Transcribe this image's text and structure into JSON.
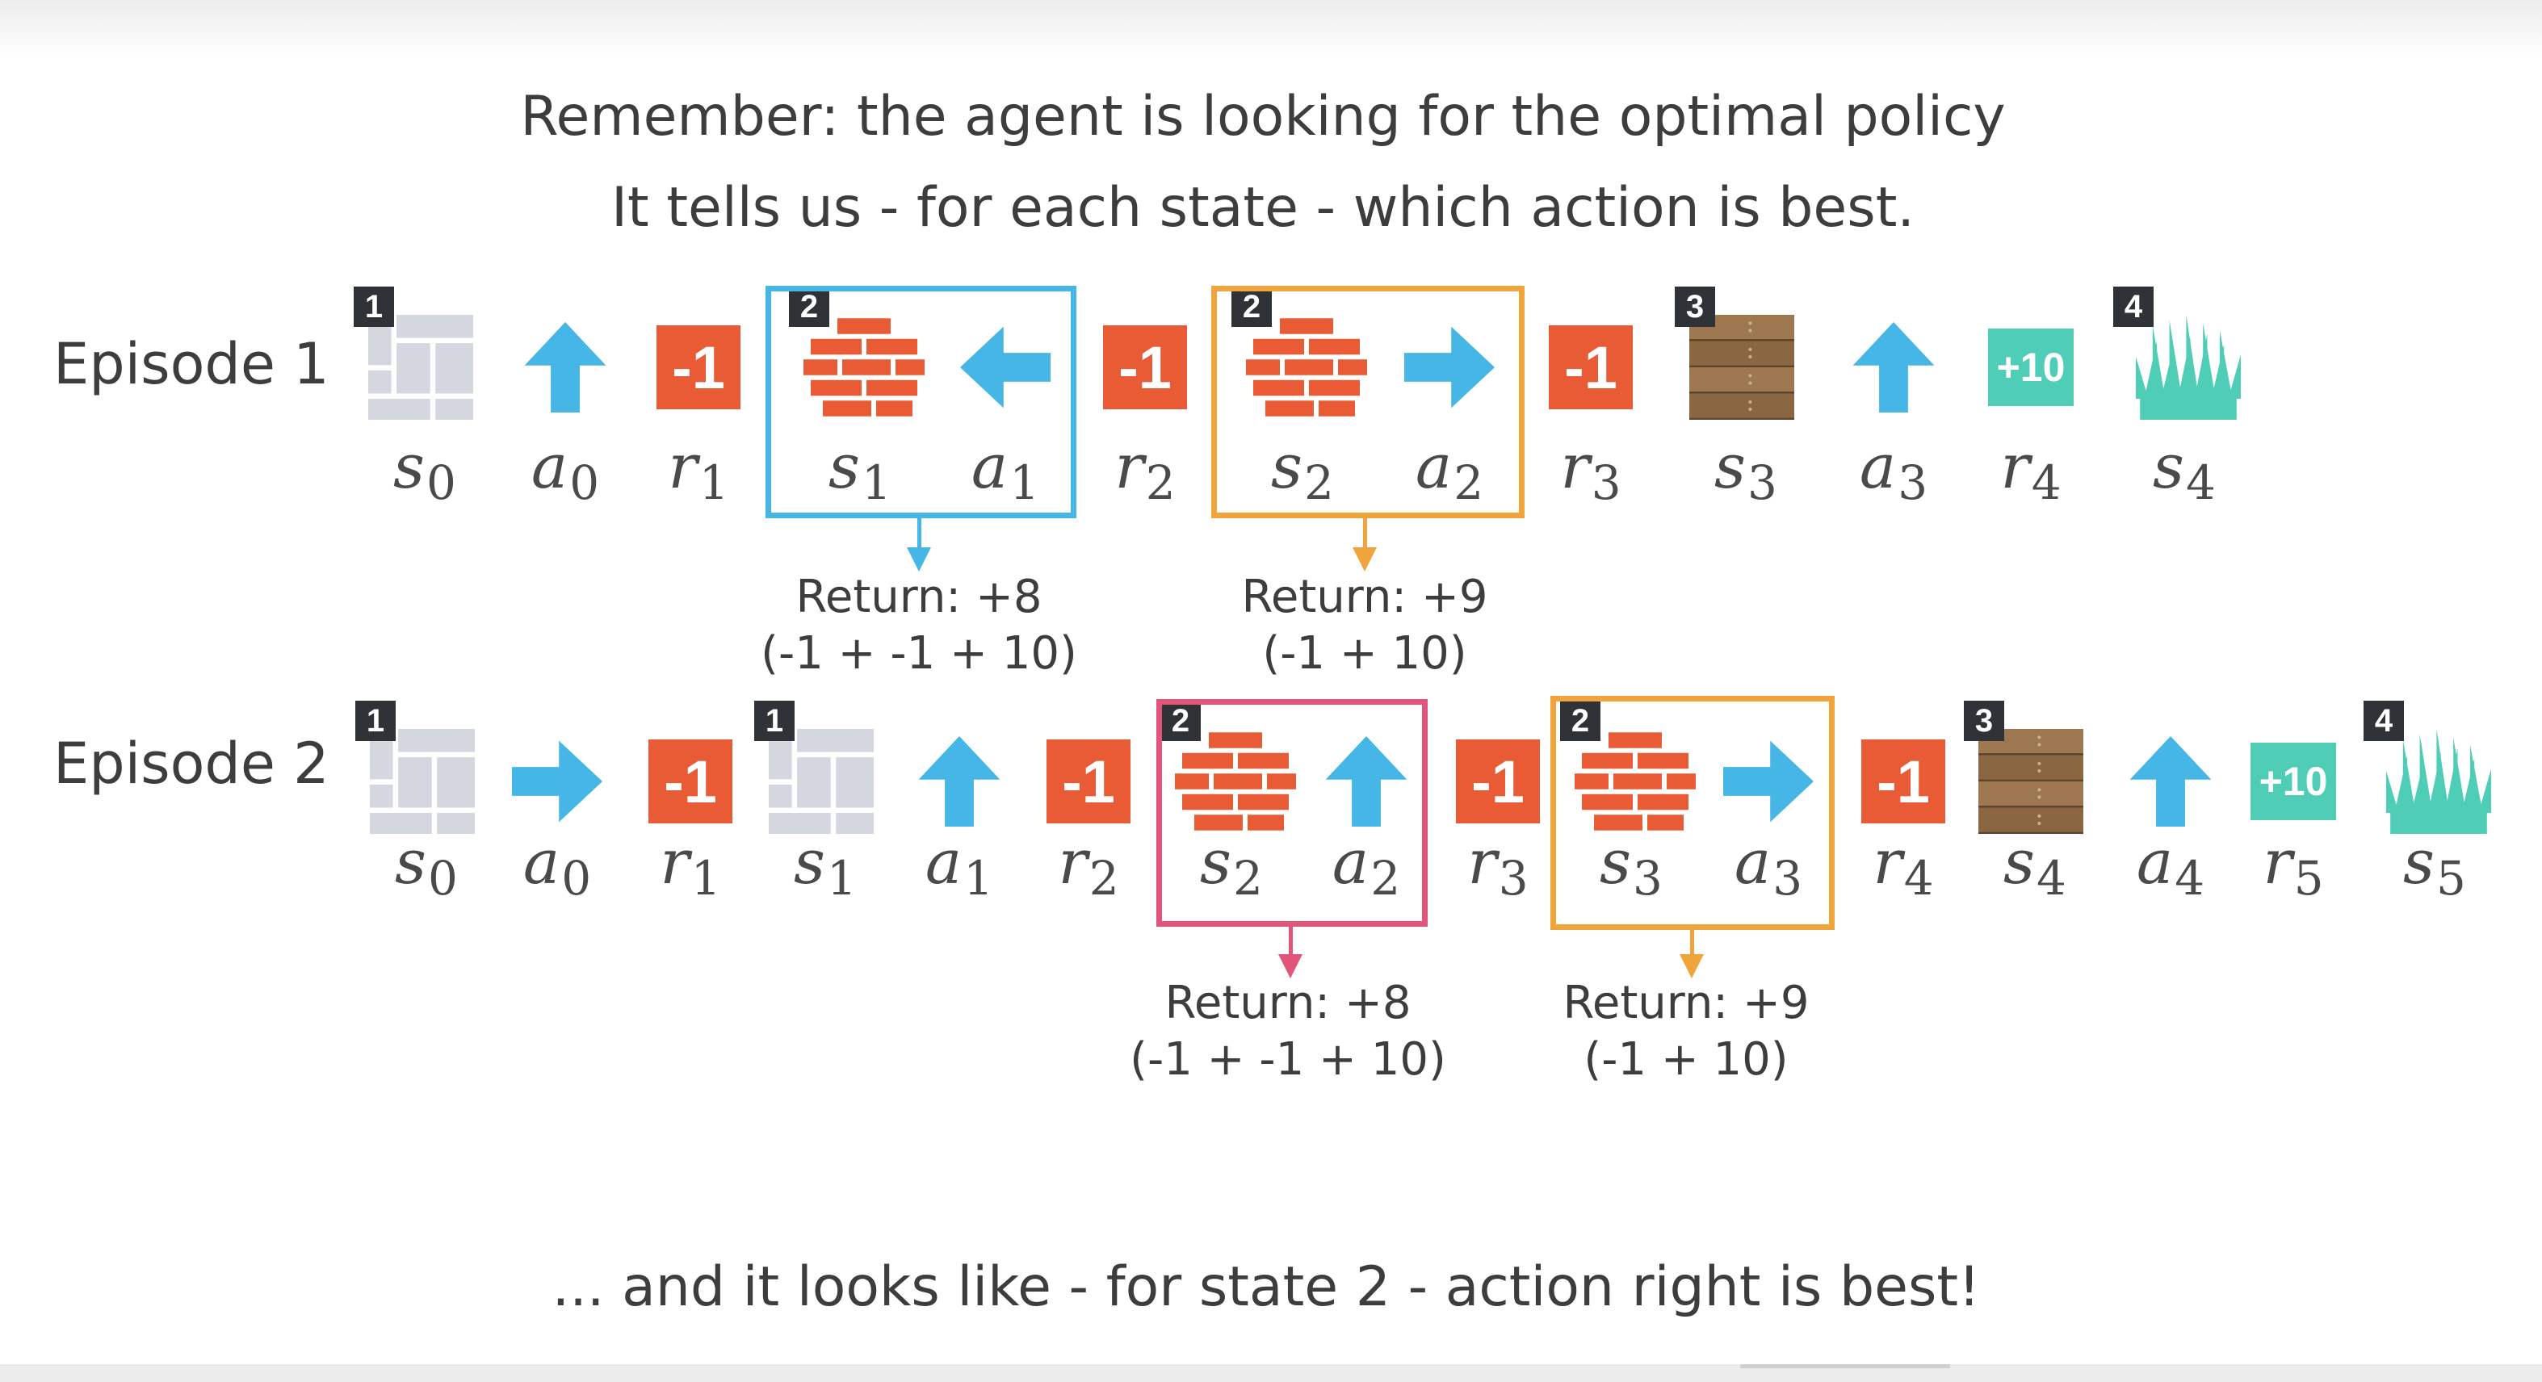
{
  "heading": {
    "line1": "Remember: the agent is looking for the optimal policy",
    "line2": "It tells us - for each state - which action is best."
  },
  "footer": "... and it looks like - for state 2 - action right is best!",
  "colors": {
    "action_arrow": "#45b6e6",
    "reward": "#e85b34",
    "reward_goal": "#4fcdb6",
    "box_blue": "#45b6e6",
    "box_orange": "#f0a43c",
    "box_pink": "#e2557a"
  },
  "episodes": [
    {
      "label": "Episode 1",
      "steps": [
        {
          "kind": "state",
          "icon": "tile-icon",
          "badge": "1",
          "var": "s",
          "sub": "0"
        },
        {
          "kind": "action",
          "icon": "arrow-up-icon",
          "var": "a",
          "sub": "0"
        },
        {
          "kind": "reward",
          "value": "-1",
          "var": "r",
          "sub": "1"
        },
        {
          "kind": "state",
          "icon": "brick-icon",
          "badge": "2",
          "var": "s",
          "sub": "1"
        },
        {
          "kind": "action",
          "icon": "arrow-left-icon",
          "var": "a",
          "sub": "1"
        },
        {
          "kind": "reward",
          "value": "-1",
          "var": "r",
          "sub": "2"
        },
        {
          "kind": "state",
          "icon": "brick-icon",
          "badge": "2",
          "var": "s",
          "sub": "2"
        },
        {
          "kind": "action",
          "icon": "arrow-right-icon",
          "var": "a",
          "sub": "2"
        },
        {
          "kind": "reward",
          "value": "-1",
          "var": "r",
          "sub": "3"
        },
        {
          "kind": "state",
          "icon": "wood-icon",
          "badge": "3",
          "var": "s",
          "sub": "3"
        },
        {
          "kind": "action",
          "icon": "arrow-up-icon",
          "var": "a",
          "sub": "3"
        },
        {
          "kind": "reward",
          "value": "+10",
          "var": "r",
          "sub": "4"
        },
        {
          "kind": "state",
          "icon": "grass-icon",
          "badge": "4",
          "var": "s",
          "sub": "4"
        }
      ],
      "returns": [
        {
          "label": "Return: +8",
          "calc": "(-1 + -1 + 10)",
          "box_color": "blue"
        },
        {
          "label": "Return: +9",
          "calc": "(-1 + 10)",
          "box_color": "orange"
        }
      ]
    },
    {
      "label": "Episode 2",
      "steps": [
        {
          "kind": "state",
          "icon": "tile-icon",
          "badge": "1",
          "var": "s",
          "sub": "0"
        },
        {
          "kind": "action",
          "icon": "arrow-right-icon",
          "var": "a",
          "sub": "0"
        },
        {
          "kind": "reward",
          "value": "-1",
          "var": "r",
          "sub": "1"
        },
        {
          "kind": "state",
          "icon": "tile-icon",
          "badge": "1",
          "var": "s",
          "sub": "1"
        },
        {
          "kind": "action",
          "icon": "arrow-up-icon",
          "var": "a",
          "sub": "1"
        },
        {
          "kind": "reward",
          "value": "-1",
          "var": "r",
          "sub": "2"
        },
        {
          "kind": "state",
          "icon": "brick-icon",
          "badge": "2",
          "var": "s",
          "sub": "2"
        },
        {
          "kind": "action",
          "icon": "arrow-up-icon",
          "var": "a",
          "sub": "2"
        },
        {
          "kind": "reward",
          "value": "-1",
          "var": "r",
          "sub": "3"
        },
        {
          "kind": "state",
          "icon": "brick-icon",
          "badge": "2",
          "var": "s",
          "sub": "3"
        },
        {
          "kind": "action",
          "icon": "arrow-right-icon",
          "var": "a",
          "sub": "3"
        },
        {
          "kind": "reward",
          "value": "-1",
          "var": "r",
          "sub": "4"
        },
        {
          "kind": "state",
          "icon": "wood-icon",
          "badge": "3",
          "var": "s",
          "sub": "4"
        },
        {
          "kind": "action",
          "icon": "arrow-up-icon",
          "var": "a",
          "sub": "4"
        },
        {
          "kind": "reward",
          "value": "+10",
          "var": "r",
          "sub": "5"
        },
        {
          "kind": "state",
          "icon": "grass-icon",
          "badge": "4",
          "var": "s",
          "sub": "5"
        }
      ],
      "returns": [
        {
          "label": "Return: +8",
          "calc": "(-1 + -1 + 10)",
          "box_color": "pink"
        },
        {
          "label": "Return: +9",
          "calc": "(-1 + 10)",
          "box_color": "orange"
        }
      ]
    }
  ]
}
